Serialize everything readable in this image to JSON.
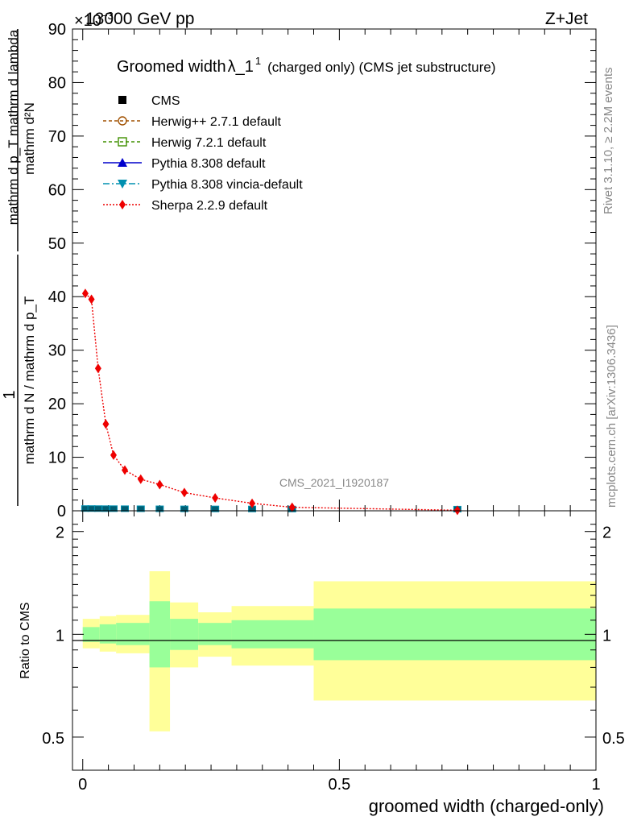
{
  "header": {
    "energy_label": "13000 GeV pp",
    "exponent_label": "×10",
    "exponent_sup": "−3",
    "process_label": "Z+Jet"
  },
  "side_labels": {
    "rivet": "Rivet 3.1.10, ≥ 2.2M events",
    "mcplots": "mcplots.cern.ch [arXiv:1306.3436]"
  },
  "analysis_id": "CMS_2021_I1920187",
  "chart_data": [
    {
      "type": "scatter",
      "title": "Groomed width",
      "title_symbol": "λ_1",
      "title_sup": "1",
      "title_suffix": "(charged only) (CMS jet substructure)",
      "ylabel_numerator": "mathrm d²N",
      "ylabel_denominator": "mathrm d p_T mathrm d lambda",
      "ylabel_prefactor_num": "1",
      "ylabel_prefactor_den": "mathrm d N / mathrm d p_T",
      "xlim": [
        -0.02,
        1.0
      ],
      "ylim": [
        0,
        90
      ],
      "y_scale_exponent": -3,
      "yticks": [
        0,
        10,
        20,
        30,
        40,
        50,
        60,
        70,
        80,
        90
      ],
      "legend": [
        {
          "label": "CMS",
          "color": "#000000",
          "marker": "square"
        },
        {
          "label": "Herwig++ 2.7.1 default",
          "color": "#a05000",
          "marker": "circle-open",
          "dash": "4,3"
        },
        {
          "label": "Herwig 7.2.1 default",
          "color": "#409000",
          "marker": "square-open",
          "dash": "4,3"
        },
        {
          "label": "Pythia 8.308 default",
          "color": "#0000cc",
          "marker": "triangle-up",
          "dash": ""
        },
        {
          "label": "Pythia 8.308 vincia-default",
          "color": "#0090b0",
          "marker": "triangle-down",
          "dash": "8,3,2,3"
        },
        {
          "label": "Sherpa 2.2.9 default",
          "color": "#ee0000",
          "marker": "diamond",
          "dash": "2,2"
        }
      ],
      "series": [
        {
          "name": "Sherpa 2.2.9 default",
          "x": [
            0.005,
            0.017,
            0.03,
            0.045,
            0.06,
            0.082,
            0.113,
            0.15,
            0.198,
            0.258,
            0.33,
            0.408,
            0.73
          ],
          "y": [
            40.6,
            39.5,
            26.6,
            16.2,
            10.4,
            7.6,
            5.9,
            4.9,
            3.4,
            2.4,
            1.4,
            0.65,
            0.1
          ]
        },
        {
          "name": "CMS",
          "x": [
            0.005,
            0.017,
            0.03,
            0.045,
            0.06,
            0.082,
            0.113,
            0.15,
            0.198,
            0.258,
            0.33,
            0.408,
            0.73
          ],
          "y": [
            0.12,
            0.12,
            0.11,
            0.1,
            0.1,
            0.09,
            0.08,
            0.07,
            0.06,
            0.05,
            0.04,
            0.03,
            0.01
          ]
        }
      ]
    },
    {
      "type": "area",
      "ylabel": "Ratio to CMS",
      "xlabel": "groomed width (charged-only)",
      "xlim": [
        -0.02,
        1.0
      ],
      "ylim": [
        0.4,
        2.3
      ],
      "y_scale": "log",
      "yticks": [
        0.5,
        1,
        2
      ],
      "xticks": [
        0,
        0.5,
        1
      ],
      "reference": 1,
      "bins": [
        {
          "x0": 0.0,
          "x1": 0.033,
          "stat_lo": 0.95,
          "stat_hi": 1.05,
          "tot_lo": 0.91,
          "tot_hi": 1.11
        },
        {
          "x0": 0.033,
          "x1": 0.065,
          "stat_lo": 0.94,
          "stat_hi": 1.07,
          "tot_lo": 0.89,
          "tot_hi": 1.13
        },
        {
          "x0": 0.065,
          "x1": 0.13,
          "stat_lo": 0.93,
          "stat_hi": 1.08,
          "tot_lo": 0.88,
          "tot_hi": 1.14
        },
        {
          "x0": 0.13,
          "x1": 0.17,
          "stat_lo": 0.8,
          "stat_hi": 1.25,
          "tot_lo": 0.52,
          "tot_hi": 1.53
        },
        {
          "x0": 0.17,
          "x1": 0.225,
          "stat_lo": 0.9,
          "stat_hi": 1.11,
          "tot_lo": 0.8,
          "tot_hi": 1.24
        },
        {
          "x0": 0.225,
          "x1": 0.29,
          "stat_lo": 0.93,
          "stat_hi": 1.08,
          "tot_lo": 0.86,
          "tot_hi": 1.16
        },
        {
          "x0": 0.29,
          "x1": 0.45,
          "stat_lo": 0.91,
          "stat_hi": 1.1,
          "tot_lo": 0.81,
          "tot_hi": 1.21
        },
        {
          "x0": 0.45,
          "x1": 1.0,
          "stat_lo": 0.84,
          "stat_hi": 1.19,
          "tot_lo": 0.64,
          "tot_hi": 1.43
        }
      ],
      "colors": {
        "stat": "#99ff99",
        "total": "#ffff99"
      }
    }
  ]
}
